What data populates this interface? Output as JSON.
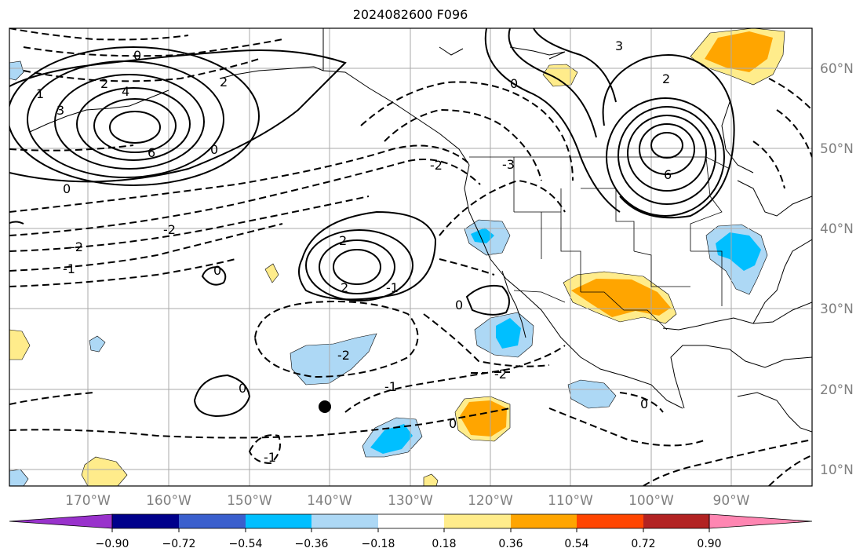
{
  "title": "2024082600 F096",
  "map": {
    "lon_labels": [
      "170°W",
      "160°W",
      "150°W",
      "140°W",
      "130°W",
      "120°W",
      "110°W",
      "100°W",
      "90°W"
    ],
    "lat_labels": [
      "60°N",
      "50°N",
      "40°N",
      "30°N",
      "20°N",
      "10°N"
    ],
    "grid": true,
    "marker": "black-dot"
  },
  "contour_labels": [
    "0",
    "1",
    "2",
    "3",
    "4",
    "6",
    "2",
    "0",
    "0",
    "-2",
    "-1",
    "2",
    "2",
    "-1",
    "0",
    "-2",
    "-2",
    "-1",
    "0",
    "-1",
    "0",
    "0",
    "0",
    "-3",
    "0",
    "3",
    "6",
    "2",
    "-2",
    "-2"
  ],
  "colorbar": {
    "ticks": [
      "−0.90",
      "−0.72",
      "−0.54",
      "−0.36",
      "−0.18",
      "0.18",
      "0.36",
      "0.54",
      "0.72",
      "0.90"
    ],
    "colors": [
      "#9932cc",
      "#00008b",
      "#3a5fcd",
      "#00bfff",
      "#add8f5",
      "#ffffff",
      "#ffec8b",
      "#ffa500",
      "#ff4500",
      "#b22222",
      "#ff86b2"
    ]
  }
}
